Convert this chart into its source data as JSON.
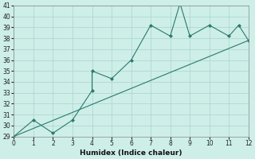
{
  "xlabel": "Humidex (Indice chaleur)",
  "x_pts": [
    0,
    1,
    2,
    3,
    4,
    4,
    5,
    6,
    7,
    8,
    8.5,
    9,
    10,
    11,
    11.5,
    12
  ],
  "y_pts": [
    29,
    30.5,
    29.3,
    30.5,
    33.2,
    35.0,
    34.3,
    36.0,
    39.2,
    38.2,
    41.2,
    38.2,
    39.2,
    38.2,
    39.2,
    37.8
  ],
  "trend_x": [
    0,
    12
  ],
  "trend_y": [
    29.0,
    37.8
  ],
  "ylim": [
    29,
    41
  ],
  "xlim": [
    0,
    12
  ],
  "yticks": [
    29,
    30,
    31,
    32,
    33,
    34,
    35,
    36,
    37,
    38,
    39,
    40,
    41
  ],
  "xticks": [
    0,
    1,
    2,
    3,
    4,
    5,
    6,
    7,
    8,
    9,
    10,
    11,
    12
  ],
  "line_color": "#2a7a6e",
  "bg_color": "#ceeee8",
  "grid_color": "#aad4ce",
  "spine_color": "#888888",
  "tick_color": "#222222",
  "label_color": "#111111",
  "tick_fontsize": 5.5,
  "xlabel_fontsize": 6.5
}
